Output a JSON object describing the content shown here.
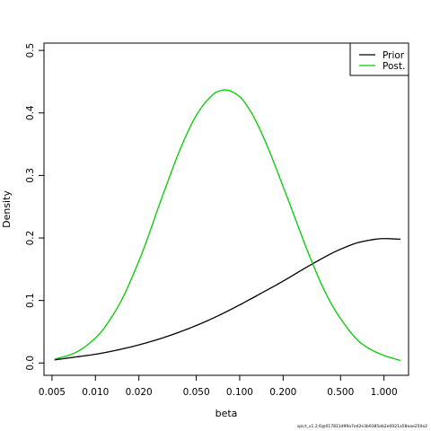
{
  "chart_data": {
    "type": "line",
    "xlabel": "beta",
    "ylabel": "Density",
    "x_scale": "log",
    "xlim": [
      0.0044,
      1.48
    ],
    "ylim": [
      -0.0197,
      0.5117
    ],
    "x_ticks": [
      0.005,
      0.01,
      0.02,
      0.05,
      0.1,
      0.2,
      0.5,
      1.0
    ],
    "x_tick_labels": [
      "0.005",
      "0.010",
      "0.020",
      "0.050",
      "0.100",
      "0.200",
      "0.500",
      "1.000"
    ],
    "y_ticks": [
      0.0,
      0.1,
      0.2,
      0.3,
      0.4,
      0.5
    ],
    "y_tick_labels": [
      "0.0",
      "0.1",
      "0.2",
      "0.3",
      "0.4",
      "0.5"
    ],
    "grid": false,
    "legend_position": "top-right",
    "series": [
      {
        "name": "Prior",
        "color": "#000000",
        "x": [
          0.0052,
          0.0075,
          0.01,
          0.015,
          0.02,
          0.03,
          0.05,
          0.07,
          0.1,
          0.15,
          0.2,
          0.3,
          0.5,
          0.7,
          1.0,
          1.3
        ],
        "y": [
          0.005,
          0.01,
          0.014,
          0.022,
          0.029,
          0.041,
          0.06,
          0.075,
          0.093,
          0.115,
          0.131,
          0.155,
          0.182,
          0.194,
          0.199,
          0.198
        ]
      },
      {
        "name": "Post.",
        "color": "#00cc00",
        "x": [
          0.0052,
          0.007,
          0.01,
          0.014,
          0.02,
          0.03,
          0.04,
          0.05,
          0.06,
          0.07,
          0.08,
          0.09,
          0.1,
          0.12,
          0.15,
          0.2,
          0.25,
          0.3,
          0.4,
          0.5,
          0.7,
          1.0,
          1.3
        ],
        "y": [
          0.006,
          0.015,
          0.04,
          0.086,
          0.163,
          0.275,
          0.35,
          0.396,
          0.421,
          0.434,
          0.437,
          0.433,
          0.426,
          0.401,
          0.355,
          0.282,
          0.223,
          0.175,
          0.109,
          0.071,
          0.031,
          0.012,
          0.004
        ]
      }
    ]
  },
  "footer": {
    "text": "spict_v1.2.6@017811d99a7ed2e3b9385eb2e0021a58eae250e2"
  }
}
